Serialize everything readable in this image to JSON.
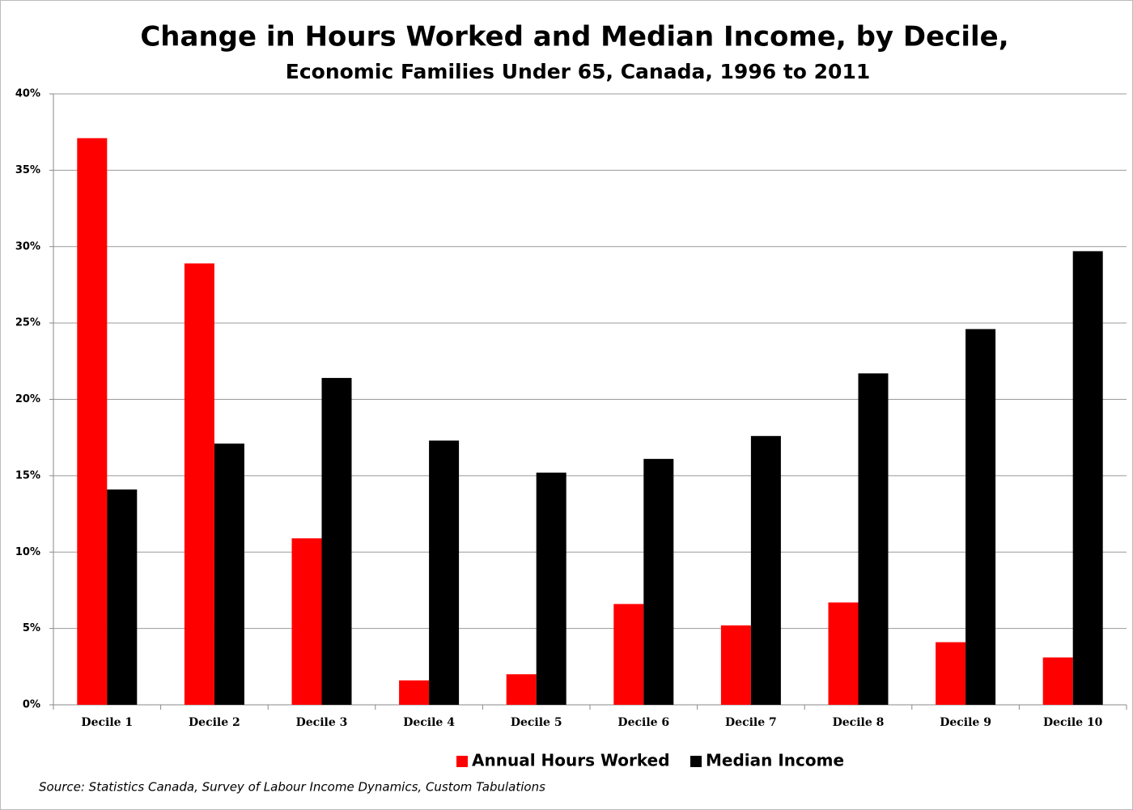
{
  "chart_data": {
    "type": "bar",
    "title": "Change in Hours Worked and Median Income, by Decile,",
    "subtitle": "Economic Families Under 65, Canada, 1996 to 2011",
    "categories": [
      "Decile 1",
      "Decile 2",
      "Decile 3",
      "Decile 4",
      "Decile 5",
      "Decile 6",
      "Decile 7",
      "Decile 8",
      "Decile 9",
      "Decile 10"
    ],
    "series": [
      {
        "name": "Annual Hours Worked",
        "color": "#ff0000",
        "values": [
          37.1,
          28.9,
          10.9,
          1.6,
          2.0,
          6.6,
          5.2,
          6.7,
          4.1,
          3.1
        ]
      },
      {
        "name": "Median Income",
        "color": "#000000",
        "values": [
          14.1,
          17.1,
          21.4,
          17.3,
          15.2,
          16.1,
          17.6,
          21.7,
          24.6,
          29.7
        ]
      }
    ],
    "ylim": [
      0,
      40
    ],
    "yticks": [
      {
        "value": 0,
        "label": "0%"
      },
      {
        "value": 5,
        "label": "5%"
      },
      {
        "value": 10,
        "label": "10%"
      },
      {
        "value": 15,
        "label": "15%"
      },
      {
        "value": 20,
        "label": "20%"
      },
      {
        "value": 25,
        "label": "25%"
      },
      {
        "value": 30,
        "label": "30%"
      },
      {
        "value": 35,
        "label": "35%"
      },
      {
        "value": 40,
        "label": "40%"
      }
    ],
    "grid": true,
    "legend": "bottom",
    "source": "Source: Statistics Canada,  Survey of Labour Income Dynamics,  Custom Tabulations"
  }
}
